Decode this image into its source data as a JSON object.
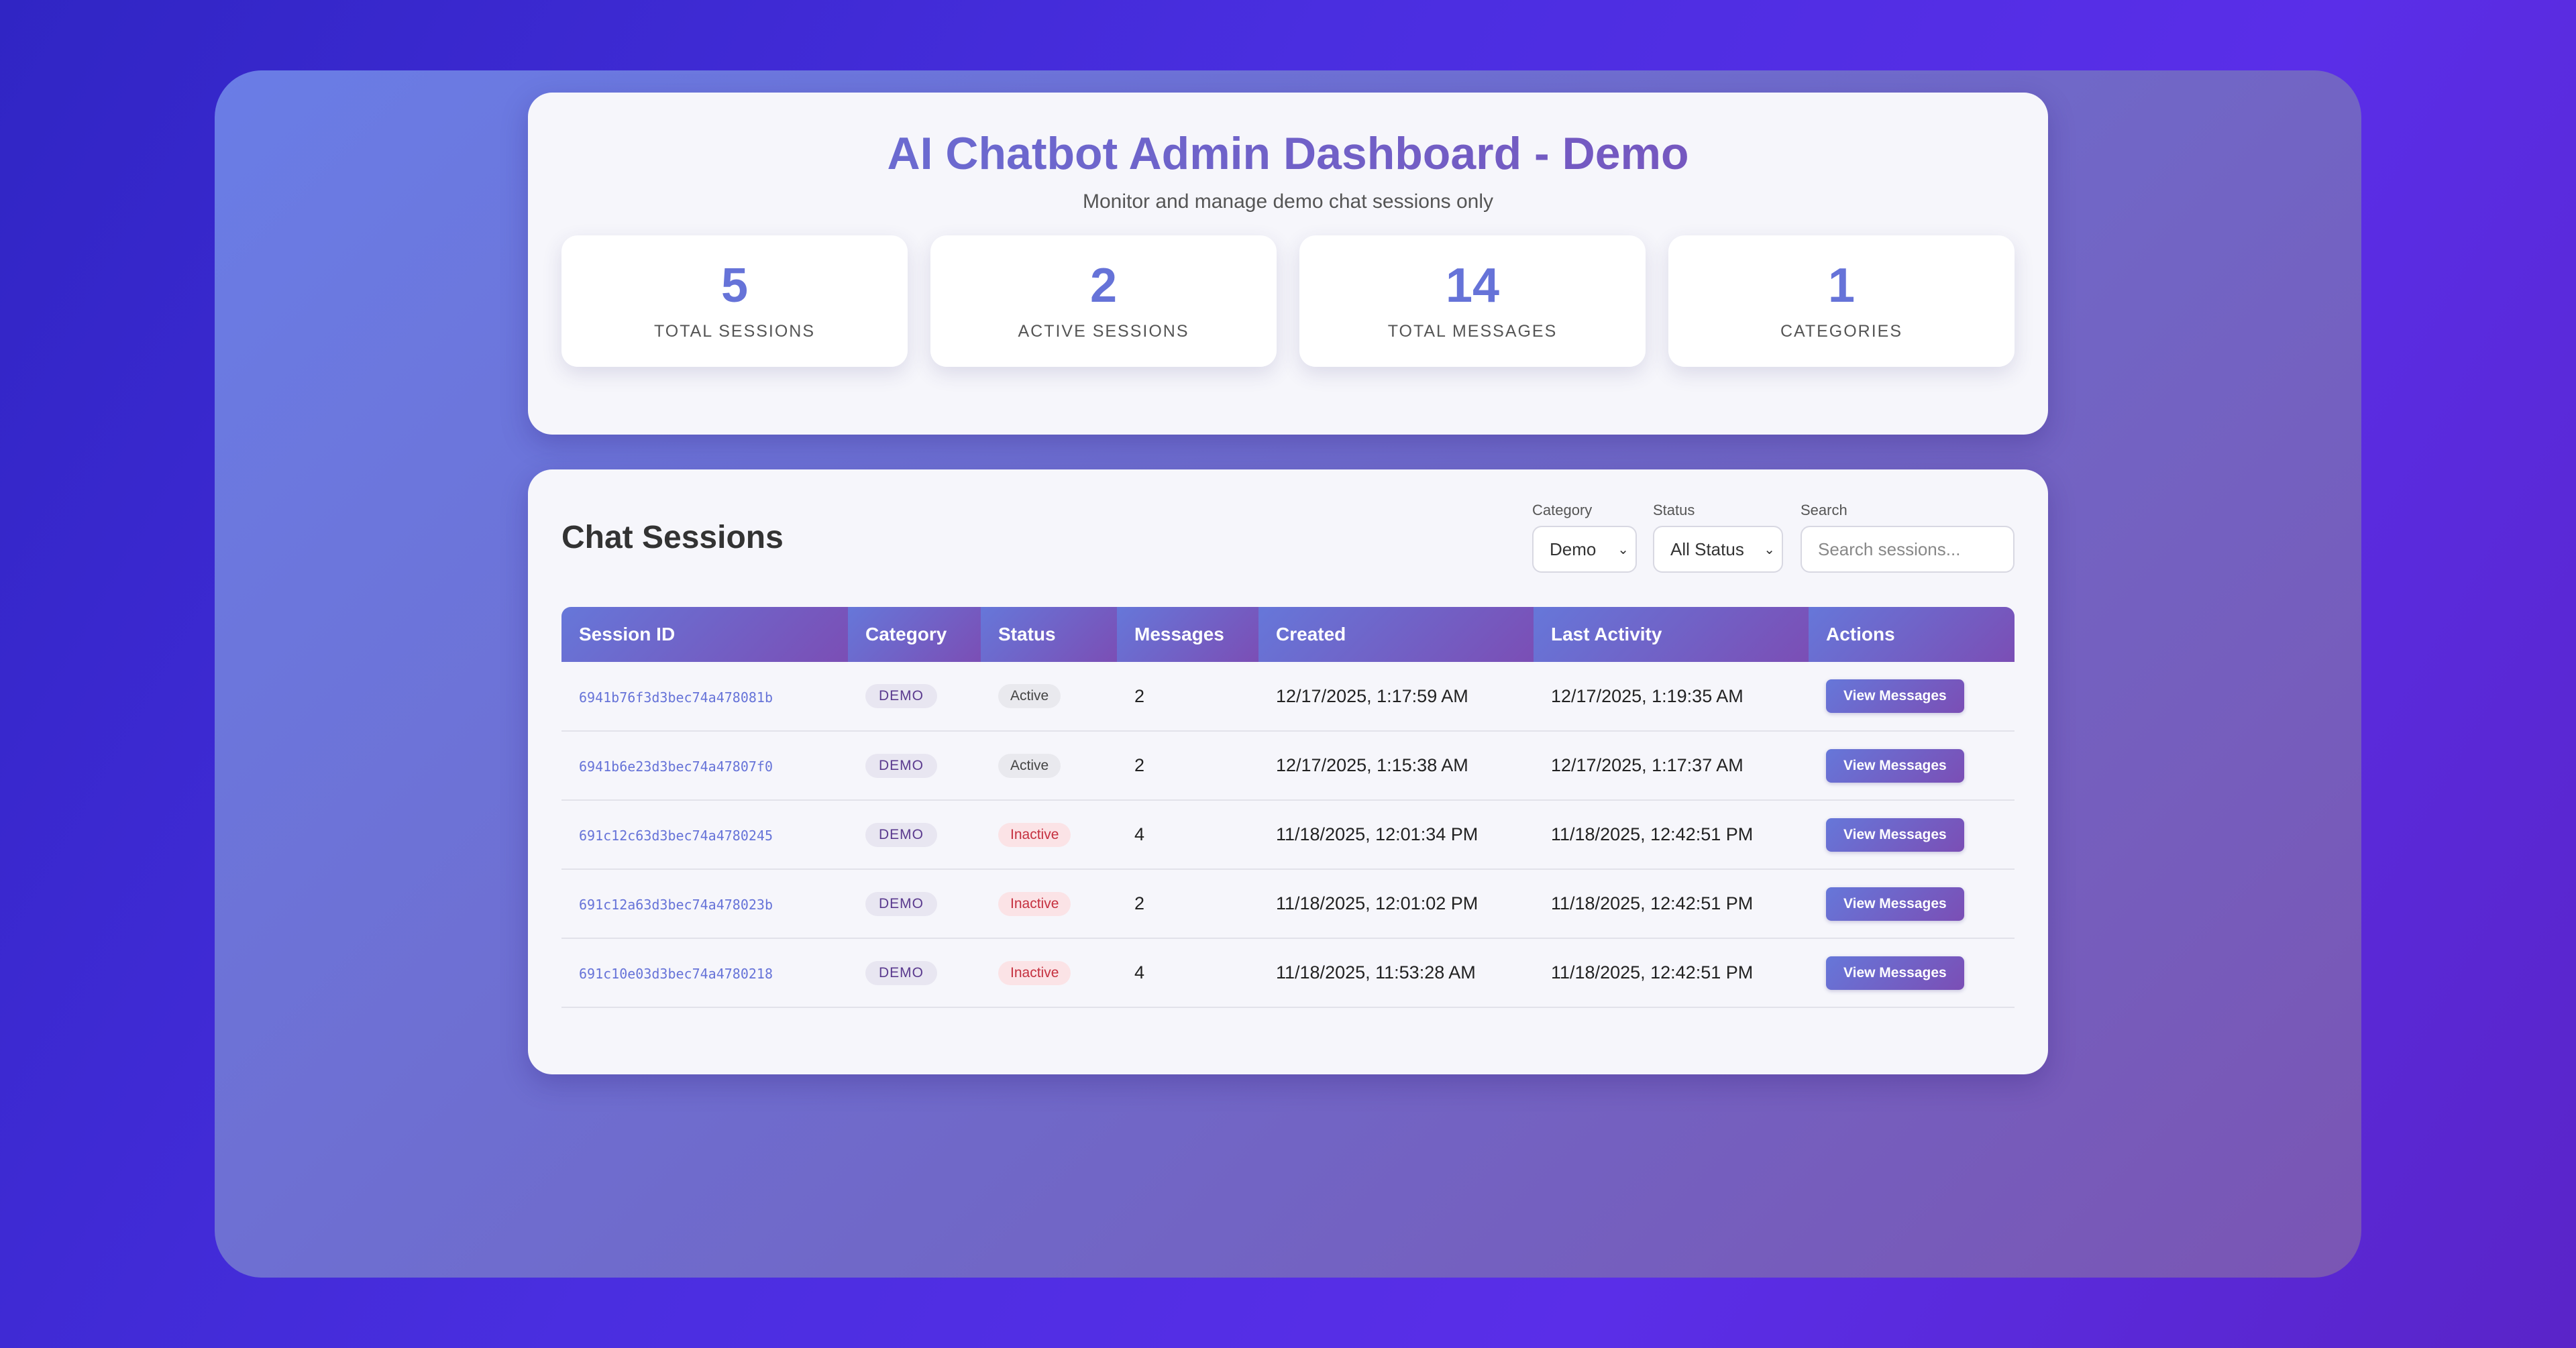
{
  "header": {
    "title": "AI Chatbot Admin Dashboard - Demo",
    "subtitle": "Monitor and manage demo chat sessions only"
  },
  "stats": [
    {
      "value": "5",
      "label": "TOTAL SESSIONS"
    },
    {
      "value": "2",
      "label": "ACTIVE SESSIONS"
    },
    {
      "value": "14",
      "label": "TOTAL MESSAGES"
    },
    {
      "value": "1",
      "label": "CATEGORIES"
    }
  ],
  "sessions": {
    "title": "Chat Sessions",
    "filters": {
      "category_label": "Category",
      "category_value": "Demo",
      "status_label": "Status",
      "status_value": "All Status",
      "search_label": "Search",
      "search_placeholder": "Search sessions..."
    },
    "columns": [
      "Session ID",
      "Category",
      "Status",
      "Messages",
      "Created",
      "Last Activity",
      "Actions"
    ],
    "action_label": "View Messages",
    "rows": [
      {
        "id": "6941b76f3d3bec74a478081b",
        "category": "DEMO",
        "status": "Active",
        "messages": "2",
        "created": "12/17/2025, 1:17:59 AM",
        "last_activity": "12/17/2025, 1:19:35 AM"
      },
      {
        "id": "6941b6e23d3bec74a47807f0",
        "category": "DEMO",
        "status": "Active",
        "messages": "2",
        "created": "12/17/2025, 1:15:38 AM",
        "last_activity": "12/17/2025, 1:17:37 AM"
      },
      {
        "id": "691c12c63d3bec74a4780245",
        "category": "DEMO",
        "status": "Inactive",
        "messages": "4",
        "created": "11/18/2025, 12:01:34 PM",
        "last_activity": "11/18/2025, 12:42:51 PM"
      },
      {
        "id": "691c12a63d3bec74a478023b",
        "category": "DEMO",
        "status": "Inactive",
        "messages": "2",
        "created": "11/18/2025, 12:01:02 PM",
        "last_activity": "11/18/2025, 12:42:51 PM"
      },
      {
        "id": "691c10e03d3bec74a4780218",
        "category": "DEMO",
        "status": "Inactive",
        "messages": "4",
        "created": "11/18/2025, 11:53:28 AM",
        "last_activity": "11/18/2025, 12:42:51 PM"
      }
    ]
  },
  "colors": {
    "accent": "#6673d8",
    "accent_purple": "#7b4eb5",
    "active_badge": "#e9e9ee",
    "inactive_badge_text": "#c5303f"
  }
}
